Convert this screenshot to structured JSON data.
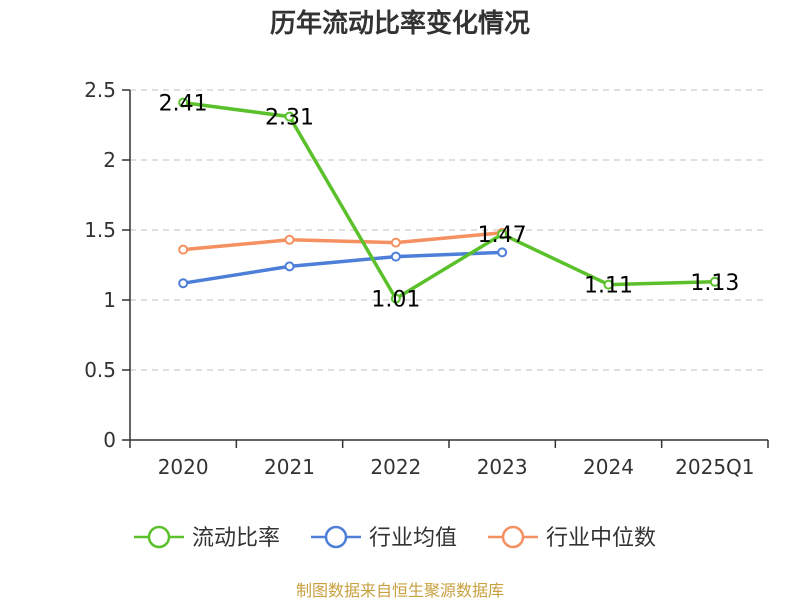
{
  "chart_data": {
    "type": "line",
    "title": "历年流动比率变化情况",
    "categories": [
      "2020",
      "2021",
      "2022",
      "2023",
      "2024",
      "2025Q1"
    ],
    "ylim": [
      0,
      2.5
    ],
    "yticks": [
      "0",
      "0.5",
      "1",
      "1.5",
      "2",
      "2.5"
    ],
    "grid": true,
    "legend_position": "bottom",
    "series": [
      {
        "name": "流动比率",
        "color": "#5bc12b",
        "values": [
          2.41,
          2.31,
          1.01,
          1.47,
          1.11,
          1.13
        ],
        "labels": [
          "2.41",
          "2.31",
          "1.01",
          "1.47",
          "1.11",
          "1.13"
        ]
      },
      {
        "name": "行业均值",
        "color": "#4d7fd8",
        "values": [
          1.12,
          1.24,
          1.31,
          1.34,
          null,
          null
        ]
      },
      {
        "name": "行业中位数",
        "color": "#f59060",
        "values": [
          1.36,
          1.43,
          1.41,
          1.48,
          null,
          null
        ]
      }
    ]
  },
  "footer": {
    "source": "制图数据来自恒生聚源数据库"
  }
}
